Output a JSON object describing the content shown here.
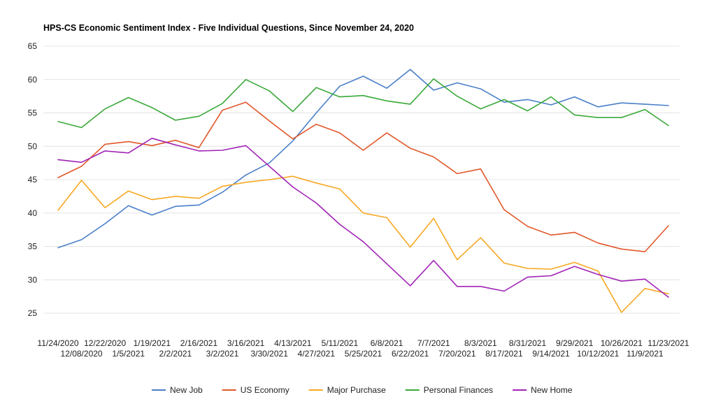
{
  "chart_data": {
    "type": "line",
    "title": "HPS-CS Economic Sentiment Index - Five Individual Questions, Since November 24, 2020",
    "xlabel": "",
    "ylabel": "",
    "ylim": [
      25,
      65
    ],
    "yticks": [
      "25",
      "30",
      "35",
      "40",
      "45",
      "50",
      "55",
      "60",
      "65"
    ],
    "grid": true,
    "legend_position": "bottom",
    "categories": [
      "11/24/2020",
      "12/08/2020",
      "12/22/2020",
      "1/5/2021",
      "1/19/2021",
      "2/2/2021",
      "2/16/2021",
      "3/2/2021",
      "3/16/2021",
      "3/30/2021",
      "4/13/2021",
      "4/27/2021",
      "5/11/2021",
      "5/25/2021",
      "6/8/2021",
      "6/22/2021",
      "7/7/2021",
      "7/20/2021",
      "8/3/2021",
      "8/17/2021",
      "8/31/2021",
      "9/14/2021",
      "9/29/2021",
      "10/12/2021",
      "10/26/2021",
      "11/9/2021",
      "11/23/2021"
    ],
    "series": [
      {
        "name": "New Job",
        "color": "#4a7fc9",
        "values": [
          34.8,
          36.0,
          38.4,
          41.1,
          39.7,
          41.0,
          41.2,
          43.1,
          45.7,
          47.5,
          50.8,
          55.0,
          59.0,
          60.5,
          58.7,
          61.5,
          58.4,
          59.5,
          58.6,
          56.6,
          57.0,
          56.2,
          57.4,
          55.9,
          56.5,
          56.3,
          56.1
        ]
      },
      {
        "name": "US Economy",
        "color": "#e0582a",
        "values": [
          45.3,
          47.0,
          50.3,
          50.7,
          50.1,
          50.9,
          49.8,
          55.4,
          56.6,
          53.8,
          51.1,
          53.3,
          52.0,
          49.4,
          52.0,
          49.7,
          48.4,
          45.9,
          46.6,
          40.5,
          38.0,
          36.7,
          37.1,
          35.5,
          34.6,
          34.2,
          38.1
        ]
      },
      {
        "name": "Major Purchase",
        "color": "#f7a823",
        "values": [
          40.4,
          44.9,
          40.8,
          43.3,
          42.0,
          42.5,
          42.2,
          44.0,
          44.6,
          45.0,
          45.5,
          44.5,
          43.6,
          40.0,
          39.3,
          34.9,
          39.2,
          33.0,
          36.3,
          32.5,
          31.7,
          31.6,
          32.6,
          31.3,
          25.1,
          28.7,
          27.9
        ]
      },
      {
        "name": "Personal Finances",
        "color": "#3aa93a",
        "values": [
          53.7,
          52.8,
          55.6,
          57.3,
          55.8,
          53.9,
          54.5,
          56.4,
          60.0,
          58.3,
          55.2,
          58.8,
          57.4,
          57.6,
          56.8,
          56.3,
          60.1,
          57.5,
          55.6,
          57.0,
          55.3,
          57.4,
          54.7,
          54.3,
          54.3,
          55.5,
          53.1
        ]
      },
      {
        "name": "New Home",
        "color": "#a124b6",
        "values": [
          48.0,
          47.6,
          49.3,
          49.0,
          51.2,
          50.2,
          49.3,
          49.4,
          50.1,
          47.0,
          43.9,
          41.5,
          38.3,
          35.7,
          32.4,
          29.1,
          32.9,
          29.0,
          29.0,
          28.3,
          30.4,
          30.6,
          32.0,
          30.8,
          29.8,
          30.1,
          27.4
        ]
      }
    ]
  }
}
